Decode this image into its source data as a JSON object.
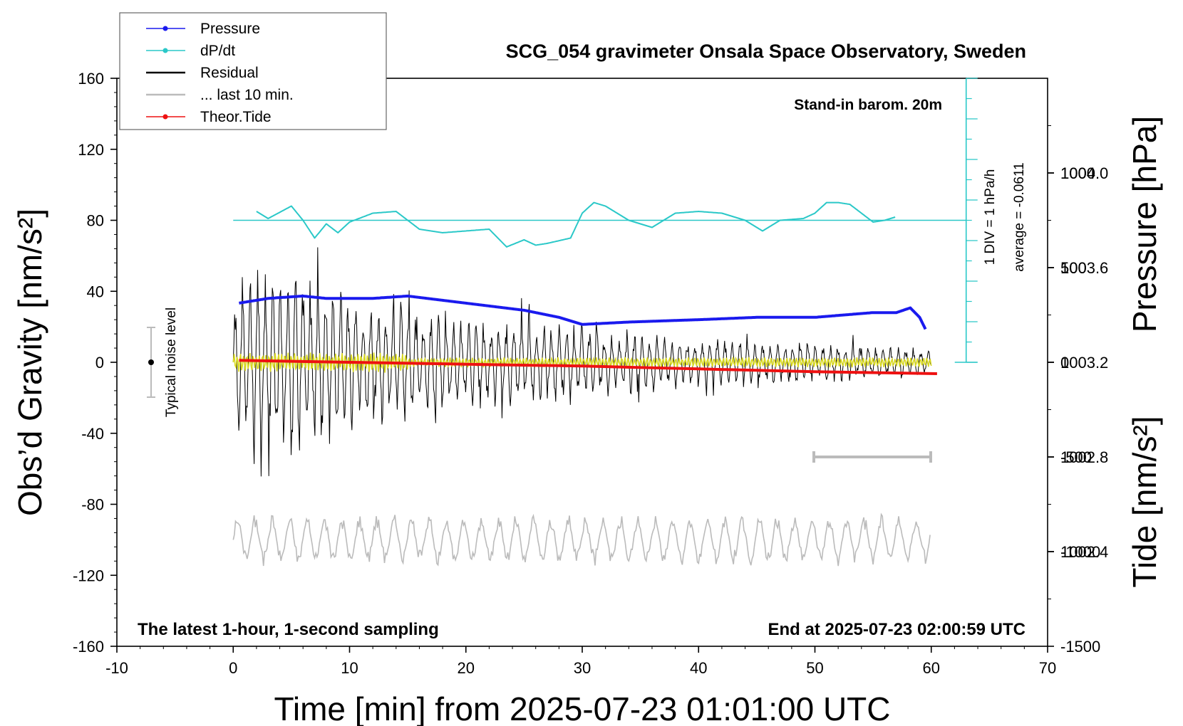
{
  "chart_data": {
    "type": "line",
    "title": "SCG_054 gravimeter Onsala Space Observatory, Sweden",
    "xlabel": "Time [min] from 2025-07-23 01:01:00 UTC",
    "ylabel": "Obs’d Gravity [nm/s²]",
    "y2label_pressure": "Pressure [hPa]",
    "y2label_tide": "Tide [nm/s²]",
    "xlim": [
      -10,
      70
    ],
    "ylim": [
      -160,
      160
    ],
    "pressure_lim": [
      1002.0,
      1004.4
    ],
    "tide_lim": [
      -1500,
      1500
    ],
    "grid": false,
    "xticks": [
      "-10",
      "0",
      "10",
      "20",
      "30",
      "40",
      "50",
      "60",
      "70"
    ],
    "yticks": [
      "160",
      "120",
      "80",
      "40",
      "0",
      "-40",
      "-80",
      "-120",
      "-160"
    ],
    "pressure_ticks": [
      "1004.0",
      "1003.6",
      "1003.2",
      "1002.8",
      "1002.4"
    ],
    "tide_ticks": [
      "1000",
      "500",
      "0",
      "-500",
      "-1000",
      "-1500"
    ],
    "legend_position": "top-left",
    "legend": [
      {
        "label": "Pressure",
        "color": "#1a1aee",
        "marker": true
      },
      {
        "label": "dP/dt",
        "color": "#2ac8c8",
        "marker": true
      },
      {
        "label": "Residual",
        "color": "#000000",
        "marker": false
      },
      {
        "label": "... last 10 min.",
        "color": "#bbbbbb",
        "marker": false
      },
      {
        "label": "Theor.Tide",
        "color": "#ee1111",
        "marker": true
      }
    ],
    "annotations": {
      "barometer": "Stand-in barom. 20m",
      "latest": "The latest 1-hour, 1-second sampling",
      "end": "End at 2025-07-23 02:00:59 UTC",
      "noise": "Typical noise level",
      "div": "1 DIV = 1 hPa/h",
      "average": "average = -0.0611"
    },
    "series": [
      {
        "name": "Pressure",
        "axis": "pressure",
        "color": "#1a1aee",
        "x": [
          0.5,
          3,
          6,
          8,
          12,
          15,
          20,
          25,
          28,
          30,
          34,
          40,
          45,
          50,
          55,
          57,
          58.2,
          59,
          59.6
        ],
        "y": [
          1003.45,
          1003.47,
          1003.48,
          1003.47,
          1003.47,
          1003.48,
          1003.45,
          1003.42,
          1003.39,
          1003.36,
          1003.37,
          1003.38,
          1003.39,
          1003.39,
          1003.41,
          1003.41,
          1003.43,
          1003.39,
          1003.33
        ]
      },
      {
        "name": "dP/dt",
        "axis": "gravity",
        "color": "#2ac8c8",
        "x": [
          2,
          3,
          5,
          6,
          7,
          8,
          9,
          10,
          12,
          14,
          16,
          18,
          20,
          22,
          23.5,
          25,
          26,
          27,
          29,
          30,
          31,
          32,
          34,
          36,
          38,
          40,
          42,
          44,
          45.5,
          47,
          49,
          50,
          51,
          52,
          53,
          54,
          55,
          56,
          57
        ],
        "y": [
          85,
          81,
          88,
          80,
          70,
          78,
          73,
          79,
          84,
          85,
          75,
          73,
          74,
          75,
          65,
          69,
          66,
          67,
          70,
          84,
          90,
          88,
          80,
          76,
          84,
          85,
          84,
          80,
          74,
          80,
          81,
          84,
          90,
          90,
          89,
          84,
          79,
          80,
          82
        ]
      },
      {
        "name": "Residual",
        "axis": "gravity",
        "color": "#000000",
        "x": [
          0,
          10,
          20,
          30,
          40,
          50,
          60
        ],
        "y": [
          0,
          0,
          0,
          0,
          0,
          0,
          0
        ],
        "amplitude_envelope": {
          "x": [
            0,
            3,
            6,
            11,
            20,
            30,
            40,
            50,
            60
          ],
          "y": [
            45,
            70,
            55,
            40,
            28,
            22,
            14,
            12,
            8
          ]
        }
      },
      {
        "name": "... last 10 min.",
        "axis": "gravity",
        "color": "#bbbbbb",
        "x": [
          0,
          10,
          20,
          30,
          40,
          50,
          60
        ],
        "y": [
          -100,
          -100,
          -100,
          -100,
          -100,
          -100,
          -100
        ]
      },
      {
        "name": "Theor.Tide",
        "axis": "tide",
        "color": "#ee1111",
        "x": [
          0.5,
          10,
          20,
          30,
          40,
          50,
          60.5
        ],
        "y": [
          10,
          0,
          -10,
          -20,
          -35,
          -50,
          -60
        ]
      }
    ]
  }
}
